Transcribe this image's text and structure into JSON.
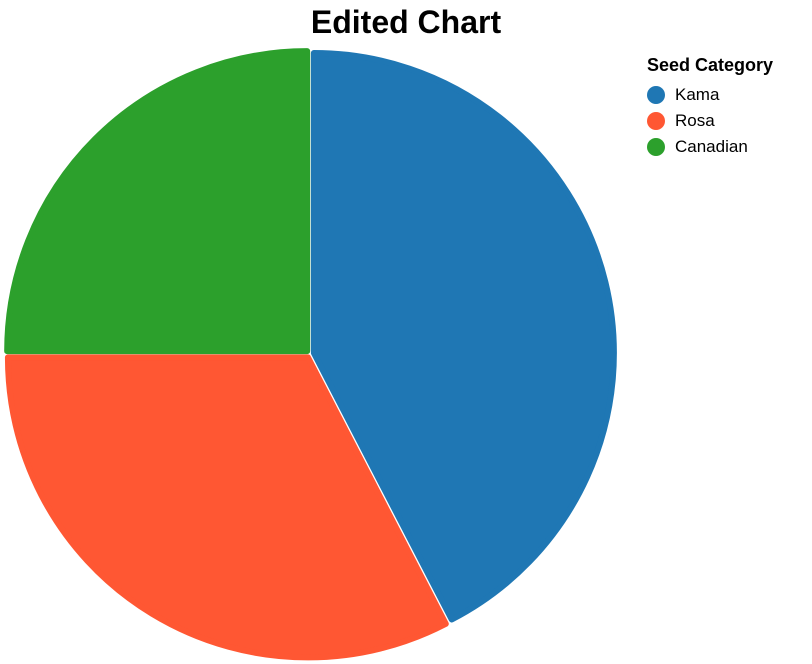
{
  "chart_data": {
    "type": "pie",
    "title": "Edited Chart",
    "legend_title": "Seed Category",
    "legend_position": "top-right",
    "categories": [
      "Kama",
      "Rosa",
      "Canadian"
    ],
    "values": [
      42.4,
      32.6,
      25.0
    ],
    "colors": [
      "#1f77b4",
      "#ff5733",
      "#2ca02c"
    ]
  }
}
